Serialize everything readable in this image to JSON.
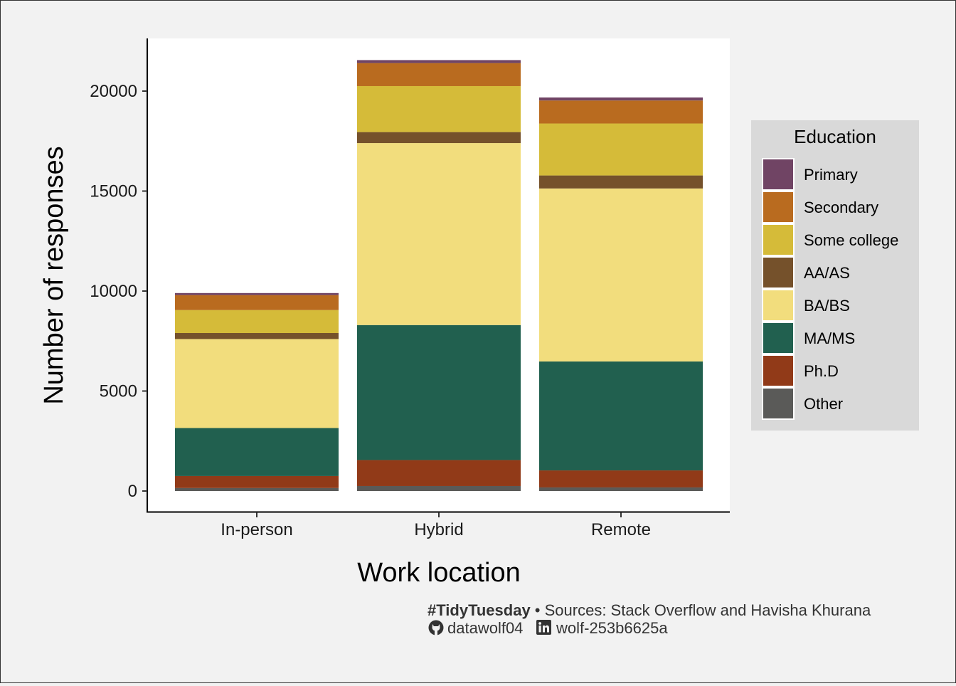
{
  "chart_data": {
    "type": "bar",
    "stacked": true,
    "categories": [
      "In-person",
      "Hybrid",
      "Remote"
    ],
    "series": [
      {
        "name": "Other",
        "color": "#5a5a58",
        "values": [
          150,
          250,
          180
        ]
      },
      {
        "name": "Ph.D",
        "color": "#913a18",
        "values": [
          600,
          1300,
          850
        ]
      },
      {
        "name": "MA/MS",
        "color": "#21604f",
        "values": [
          2400,
          6750,
          5450
        ]
      },
      {
        "name": "BA/BS",
        "color": "#f2dd7d",
        "values": [
          4450,
          9100,
          8650
        ]
      },
      {
        "name": "AA/AS",
        "color": "#75512b",
        "values": [
          300,
          550,
          650
        ]
      },
      {
        "name": "Some college",
        "color": "#d5bb39",
        "values": [
          1150,
          2300,
          2600
        ]
      },
      {
        "name": "Secondary",
        "color": "#b96b1f",
        "values": [
          750,
          1150,
          1150
        ]
      },
      {
        "name": "Primary",
        "color": "#704464",
        "values": [
          100,
          150,
          150
        ]
      }
    ],
    "xlabel": "Work location",
    "ylabel": "Number of responses",
    "ylim": [
      0,
      22500
    ],
    "yticks": [
      0,
      5000,
      10000,
      15000,
      20000
    ],
    "grid": false,
    "legend": {
      "title": "Education",
      "position": "right",
      "order": [
        "Primary",
        "Secondary",
        "Some college",
        "AA/AS",
        "BA/BS",
        "MA/MS",
        "Ph.D",
        "Other"
      ]
    },
    "colors": {
      "panel": "#ffffff",
      "background": "#f2f2f2",
      "legend_background": "#d9d9d9"
    }
  },
  "caption": {
    "hashtag": "#TidyTuesday",
    "separator": " • ",
    "sources": "Sources: Stack Overflow and Havisha Khurana",
    "github_icon": "github-icon",
    "github_handle": "datawolf04",
    "linkedin_icon": "linkedin-icon",
    "linkedin_handle": "wolf-253b6625a"
  }
}
